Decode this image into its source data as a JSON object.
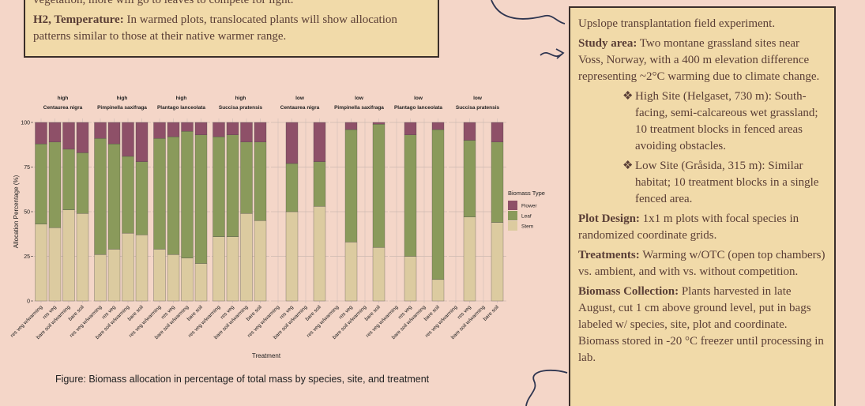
{
  "left_box": {
    "line1": "vegetation, more will go to leaves to compete for light.",
    "h2_label": "H2, Temperature:",
    "h2_text": "In warmed plots, translocated plants will show allocation patterns similar to those at their native warmer range."
  },
  "right_box": {
    "intro": "Upslope transplantation field experiment.",
    "bullet_symbol": "❖",
    "study_area": {
      "label": "Study area:",
      "text": "Two montane grassland sites near Voss, Norway, with a 400 m elevation difference representing ~2°C warming due to climate change."
    },
    "sites": [
      "High Site (Helgaset, 730 m): South-facing, semi-calcareous wet grassland; 10 treatment blocks in fenced areas avoiding obstacles.",
      "Low Site (Gråsida, 315 m): Similar habitat; 10 treatment blocks in a single fenced area."
    ],
    "plot_design": {
      "label": "Plot Design:",
      "text": "1x1 m plots with focal species in randomized coordinate grids."
    },
    "treatments": {
      "label": "Treatments:",
      "text": "Warming w/OTC (open top chambers) vs. ambient, and with vs. without competition."
    },
    "biomass": {
      "label": "Biomass Collection:",
      "text": "Plants harvested in late August, cut 1 cm above ground level, put in bags labeled w/ species, site, plot and coordinate. Biomass stored in -20 °C freezer until processing in lab."
    }
  },
  "caption": "Figure: Biomass allocation in percentage of total mass by species, site, and treatment",
  "chart_data": {
    "type": "bar",
    "stacked": true,
    "x_label": "Treatment",
    "y_label": "Allocation Percentage (%)",
    "legend_title": "Biomass Type",
    "ylim": [
      0,
      100
    ],
    "yticks": [
      0,
      25,
      50,
      75,
      100
    ],
    "grid": true,
    "categories": [
      "res veg w/warming",
      "res veg",
      "bare soil w/warming",
      "bare soil"
    ],
    "facets": [
      {
        "site": "high",
        "species": "Centaurea nigra"
      },
      {
        "site": "high",
        "species": "Pimpinella saxifraga"
      },
      {
        "site": "high",
        "species": "Plantago lanceolata"
      },
      {
        "site": "high",
        "species": "Succisa pratensis"
      },
      {
        "site": "low",
        "species": "Centaurea nigra"
      },
      {
        "site": "low",
        "species": "Pimpinella saxifraga"
      },
      {
        "site": "low",
        "species": "Plantago lanceolata"
      },
      {
        "site": "low",
        "species": "Succisa pratensis"
      }
    ],
    "series": [
      {
        "name": "Stem",
        "color": "#dccba0",
        "values": [
          [
            43,
            41,
            51,
            49
          ],
          [
            26,
            29,
            38,
            37
          ],
          [
            29,
            26,
            24,
            21
          ],
          [
            36,
            36,
            49,
            45
          ],
          [
            null,
            50,
            null,
            53
          ],
          [
            null,
            33,
            null,
            30
          ],
          [
            null,
            25,
            null,
            12
          ],
          [
            null,
            47,
            null,
            44
          ]
        ]
      },
      {
        "name": "Leaf",
        "color": "#8a9a5b",
        "values": [
          [
            45,
            48,
            34,
            34
          ],
          [
            65,
            59,
            43,
            41
          ],
          [
            62,
            66,
            71,
            72
          ],
          [
            56,
            57,
            40,
            44
          ],
          [
            null,
            27,
            null,
            25
          ],
          [
            null,
            63,
            null,
            69
          ],
          [
            null,
            68,
            null,
            84
          ],
          [
            null,
            43,
            null,
            45
          ]
        ]
      },
      {
        "name": "Flower",
        "color": "#8e5068",
        "values": [
          [
            12,
            11,
            15,
            17
          ],
          [
            9,
            12,
            19,
            22
          ],
          [
            9,
            8,
            5,
            7
          ],
          [
            8,
            7,
            11,
            11
          ],
          [
            null,
            23,
            null,
            22
          ],
          [
            null,
            4,
            null,
            1
          ],
          [
            null,
            7,
            null,
            4
          ],
          [
            null,
            10,
            null,
            11
          ]
        ]
      }
    ]
  }
}
